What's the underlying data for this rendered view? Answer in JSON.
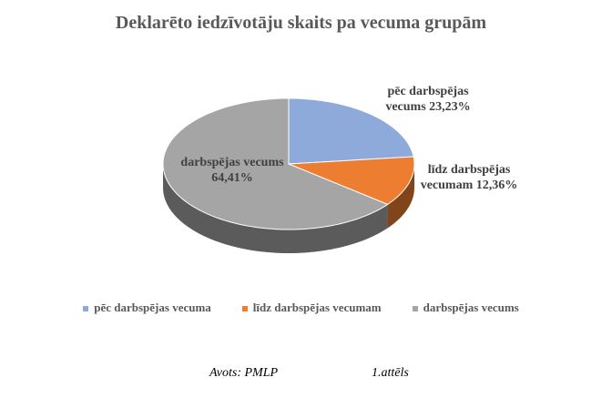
{
  "chart_data": {
    "type": "pie",
    "title": "Deklarēto iedzīvotāju skaits pa vecuma grupām",
    "categories": [
      "pēc darbspējas vecuma",
      "līdz darbspējas vecumam",
      "darbspējas vecums"
    ],
    "values": [
      23.23,
      12.36,
      64.41
    ],
    "value_labels": [
      "pēc darbspējas vecums 23,23%",
      "līdz darbspējas vecumam 12,36%",
      "darbspējas vecums 64,41%"
    ],
    "colors": [
      "#8eaadb",
      "#ed7d31",
      "#a5a5a5"
    ],
    "legend": "bottom"
  },
  "footer": {
    "source": "Avots: PMLP",
    "figure": "1.attēls"
  }
}
